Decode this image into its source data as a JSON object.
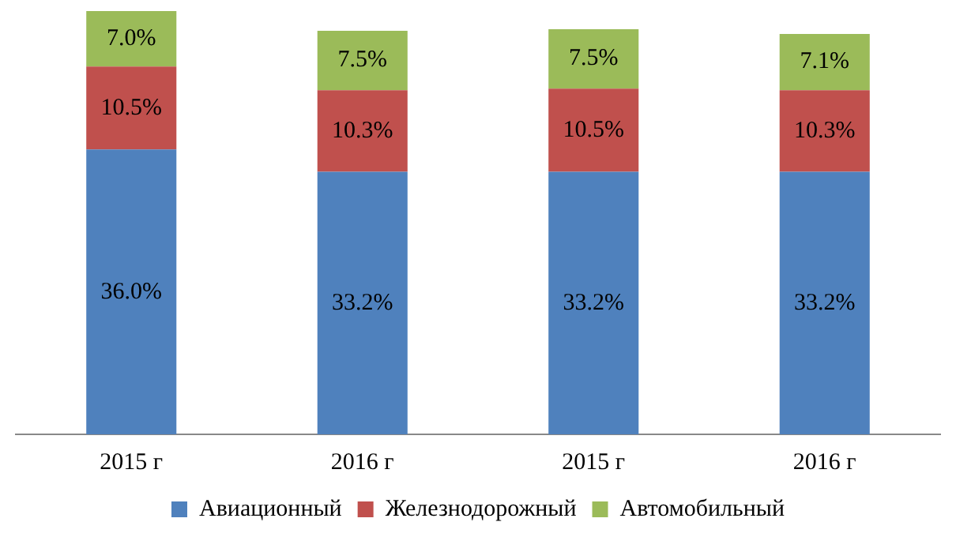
{
  "chart_data": {
    "type": "bar",
    "stacked": true,
    "data_labels": true,
    "legend": "bottom",
    "grid": false,
    "categories": [
      "2015 г",
      "2016 г",
      "2015 г",
      "2016 г"
    ],
    "series": [
      {
        "name": "Авиационный",
        "color": "#4f81bd",
        "values": [
          36.0,
          33.2,
          33.2,
          33.2
        ],
        "value_labels": [
          "36.0%",
          "33.2%",
          "33.2%",
          "33.2%"
        ]
      },
      {
        "name": "Железнодорожный",
        "color": "#c0504d",
        "values": [
          10.5,
          10.3,
          10.5,
          10.3
        ],
        "value_labels": [
          "10.5%",
          "10.3%",
          "10.5%",
          "10.3%"
        ]
      },
      {
        "name": "Автомобильный",
        "color": "#9bbb59",
        "values": [
          7.0,
          7.5,
          7.5,
          7.1
        ],
        "value_labels": [
          "7.0%",
          "7.5%",
          "7.5%",
          "7.1%"
        ]
      }
    ]
  }
}
